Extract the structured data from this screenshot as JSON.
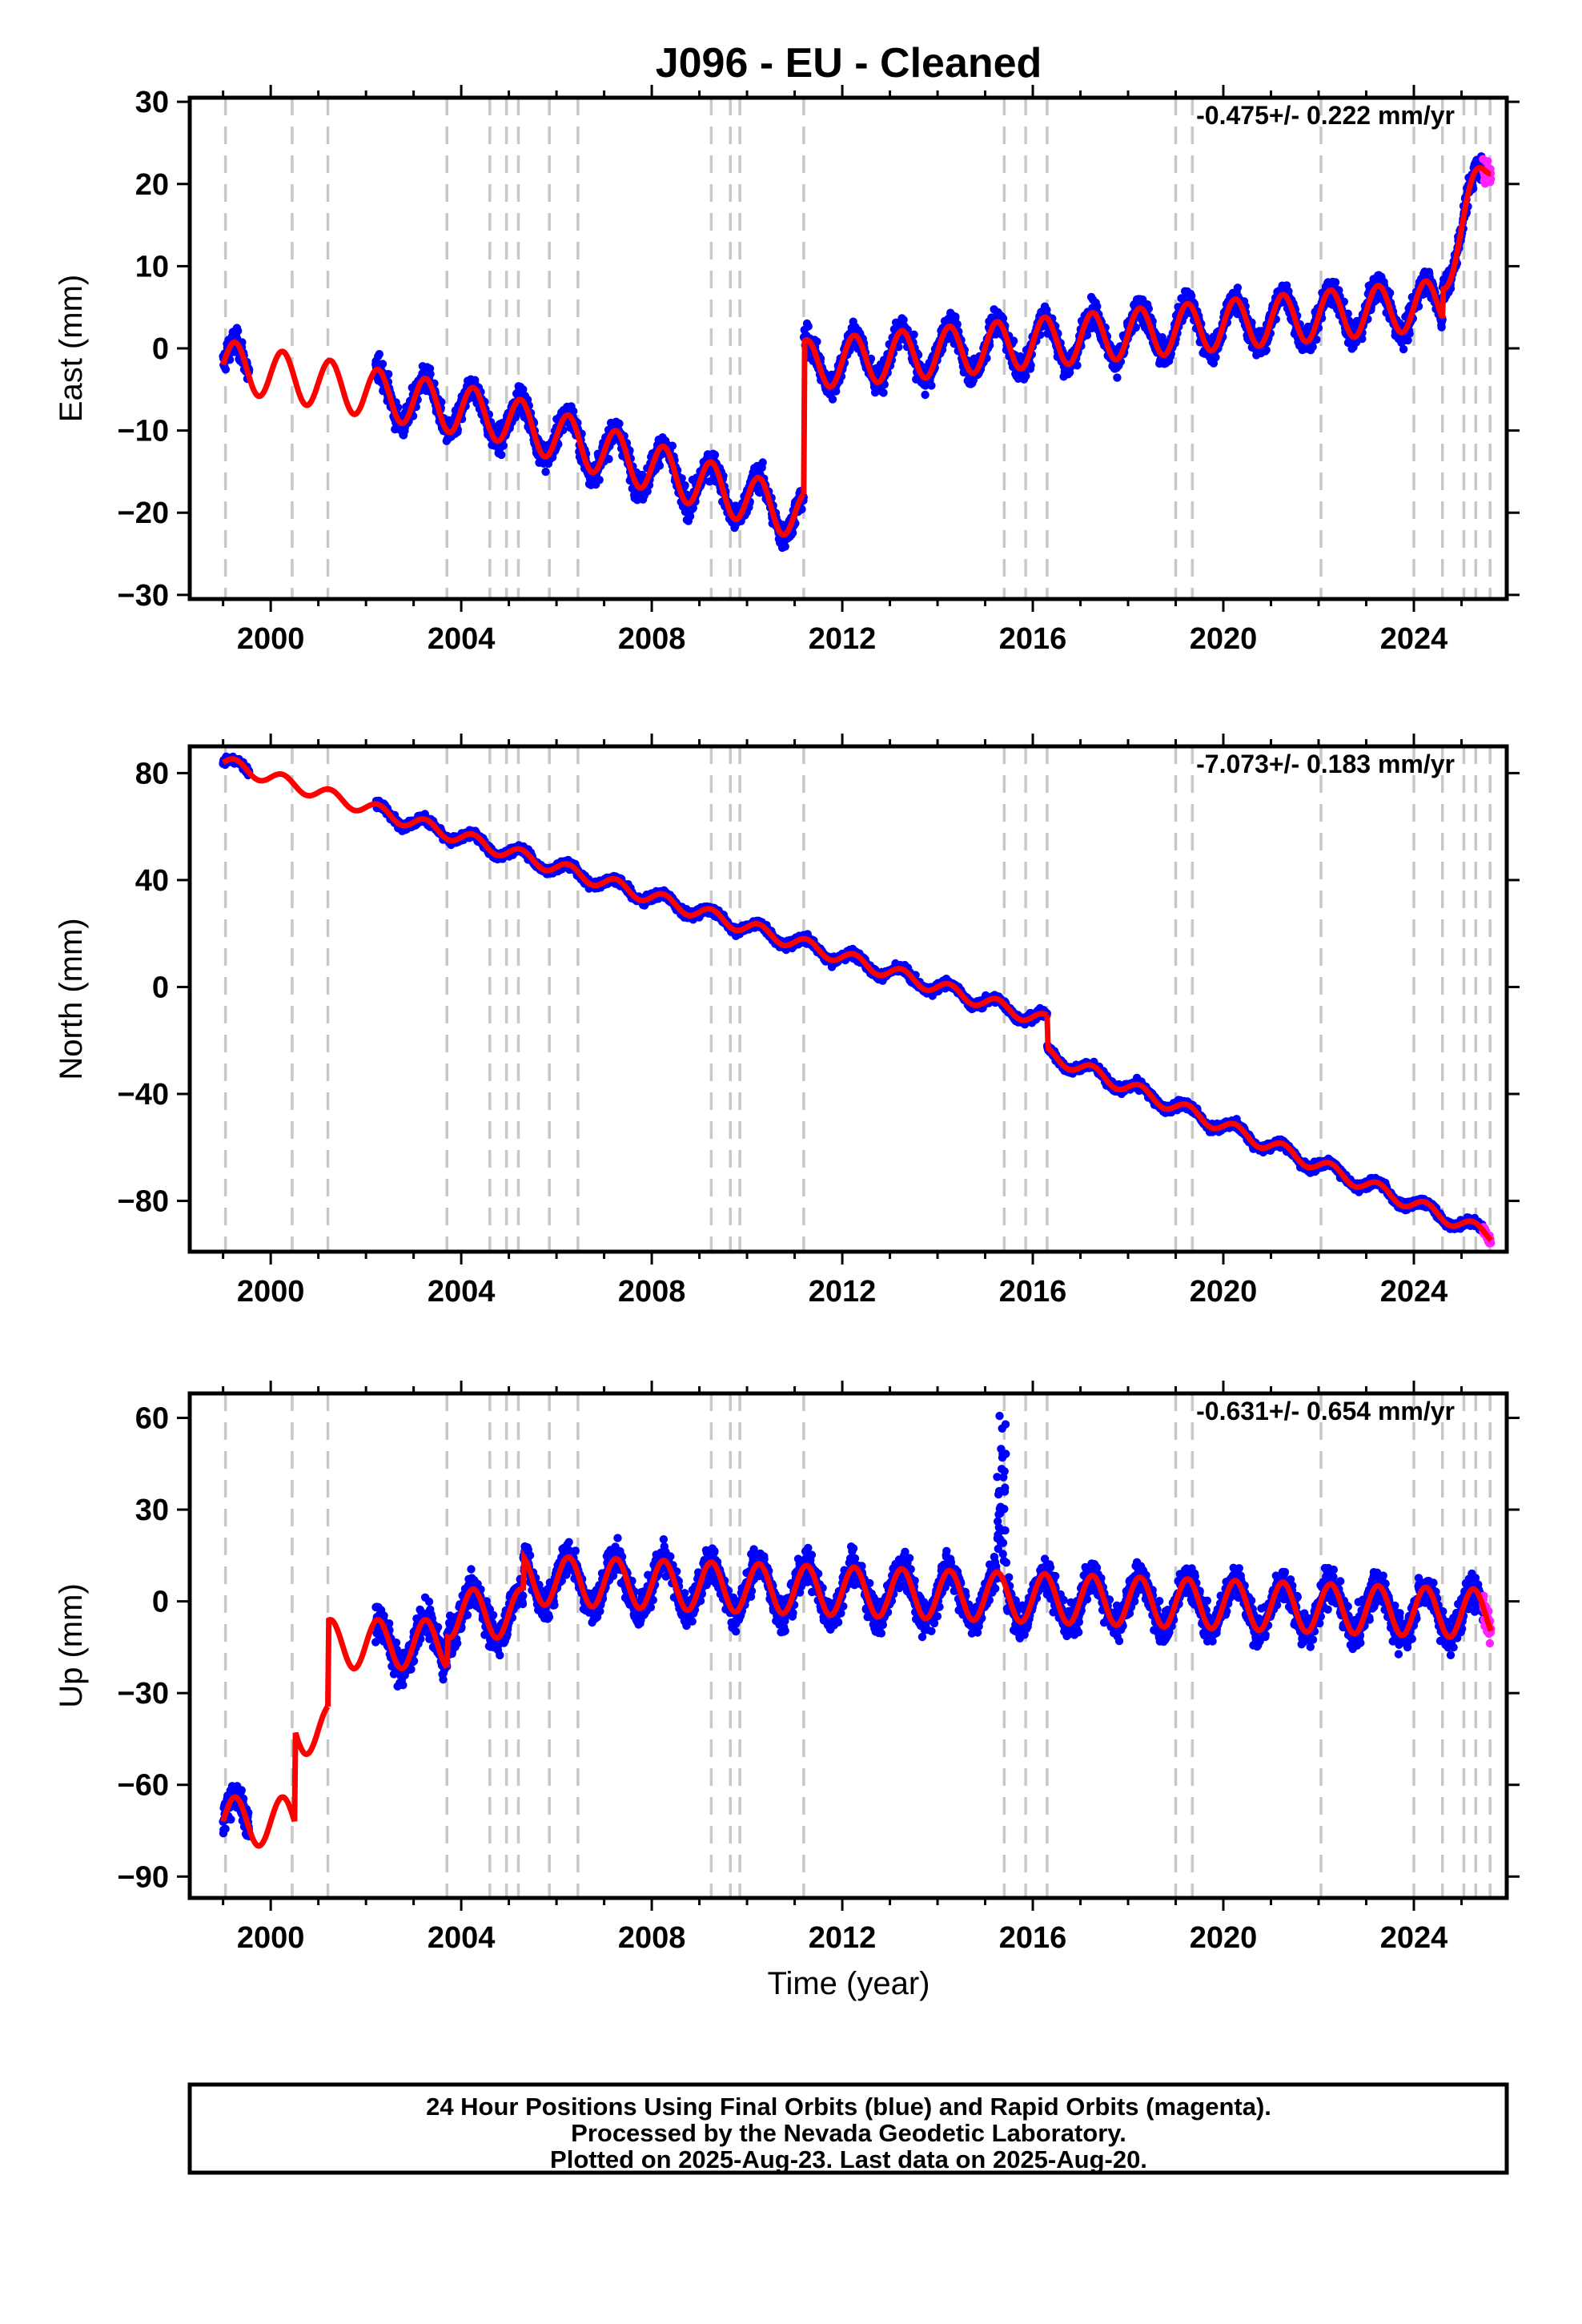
{
  "title": "J096  - EU - Cleaned",
  "xlabel": "Time (year)",
  "colors": {
    "final": "#0000ff",
    "rapid": "#ff22ff",
    "model": "#ff0000",
    "event_lines": "#c8c8c8",
    "frame": "#000000"
  },
  "chart_data": [
    {
      "type": "scatter",
      "component": "East",
      "ylabel": "East (mm)",
      "rate_label": "-0.475+/- 0.222 mm/yr",
      "xlim": [
        1998.3,
        2025.95
      ],
      "ylim": [
        -30.5,
        30.5
      ],
      "xticks": [
        2000,
        2004,
        2008,
        2012,
        2016,
        2020,
        2024
      ],
      "yticks": [
        -30,
        -20,
        -10,
        0,
        10,
        20,
        30
      ],
      "grid": false,
      "model": {
        "segments": [
          {
            "t0": 1999.0,
            "t1": 2004.6,
            "off": -2.0,
            "slope": -1.1
          },
          {
            "t0": 2004.6,
            "t1": 2011.19,
            "off": -8.0,
            "slope": -1.9
          },
          {
            "t0": 2011.19,
            "t1": 2024.6,
            "off": -2.0,
            "slope": 0.55
          },
          {
            "t0": 2024.6,
            "t1": 2025.62,
            "off": 9.0,
            "slope": 14.0
          }
        ],
        "seasonal_amplitude": 3.0
      },
      "data_start": 1999.0,
      "data_gap": [
        1999.55,
        2002.2
      ],
      "final_end": 2025.45,
      "rapid_end": 2025.62,
      "noise": 2.0
    },
    {
      "type": "scatter",
      "component": "North",
      "ylabel": "North (mm)",
      "rate_label": "-7.073+/- 0.183 mm/yr",
      "xlim": [
        1998.3,
        2025.95
      ],
      "ylim": [
        -99,
        90
      ],
      "xticks": [
        2000,
        2004,
        2008,
        2012,
        2016,
        2020,
        2024
      ],
      "yticks": [
        -80,
        -40,
        0,
        40,
        80
      ],
      "grid": false,
      "model": {
        "segments": [
          {
            "t0": 1999.0,
            "t1": 2016.3,
            "off": 84.0,
            "slope": -5.6
          },
          {
            "t0": 2016.3,
            "t1": 2025.62,
            "off": -25.0,
            "slope": -7.3
          }
        ],
        "seasonal_amplitude": 2.5
      },
      "data_start": 1999.0,
      "data_gap": [
        1999.55,
        2002.2
      ],
      "final_end": 2025.45,
      "rapid_end": 2025.62,
      "noise": 2.0
    },
    {
      "type": "scatter",
      "component": "Up",
      "ylabel": "Up (mm)",
      "rate_label": "-0.631+/- 0.654 mm/yr",
      "xlim": [
        1998.3,
        2025.95
      ],
      "ylim": [
        -97,
        68
      ],
      "xticks": [
        2000,
        2004,
        2008,
        2012,
        2016,
        2020,
        2024
      ],
      "yticks": [
        -90,
        -60,
        -30,
        0,
        30,
        60
      ],
      "grid": false,
      "model": {
        "segments": [
          {
            "t0": 1999.0,
            "t1": 2000.5,
            "off": -72.0,
            "slope": 0.0
          },
          {
            "t0": 2000.5,
            "t1": 2001.2,
            "off": -42.0,
            "slope": 0.0
          },
          {
            "t0": 2001.2,
            "t1": 2003.7,
            "off": -14.0,
            "slope": 0.0
          },
          {
            "t0": 2003.7,
            "t1": 2005.3,
            "off": -4.0,
            "slope": 0.0
          },
          {
            "t0": 2005.3,
            "t1": 2025.62,
            "off": 7.0,
            "slope": -0.55
          }
        ],
        "seasonal_amplitude": 8.0
      },
      "data_start": 1999.0,
      "data_gap": [
        1999.55,
        2002.2
      ],
      "final_end": 2025.45,
      "rapid_end": 2025.62,
      "noise": 7.0,
      "spike": {
        "start": 2015.25,
        "end": 2015.45,
        "peak": 64
      }
    }
  ],
  "event_lines": [
    1999.05,
    2000.45,
    2001.2,
    2003.7,
    2004.6,
    2004.95,
    2005.2,
    2005.85,
    2006.45,
    2009.25,
    2009.65,
    2009.85,
    2011.19,
    2015.4,
    2015.85,
    2016.3,
    2019.0,
    2019.35,
    2022.05,
    2024.0,
    2024.6,
    2025.05,
    2025.3,
    2025.6
  ],
  "footer": {
    "line1": "24 Hour Positions Using Final Orbits (blue) and Rapid Orbits (magenta).",
    "line2": "Processed by the Nevada Geodetic Laboratory.",
    "line3": "Plotted on 2025-Aug-23. Last data on 2025-Aug-20."
  }
}
